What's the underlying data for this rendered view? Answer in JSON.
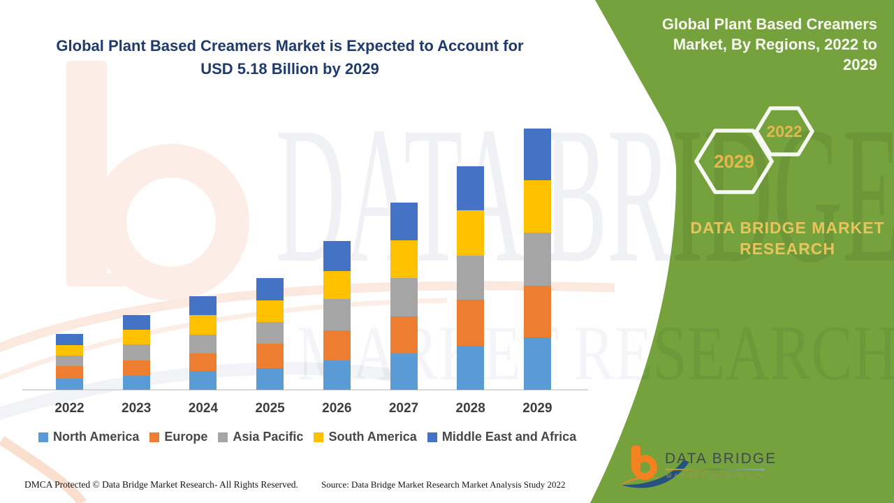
{
  "title": {
    "line1": "Global Plant Based Creamers Market is Expected to Account for",
    "line2": "USD 5.18 Billion by 2029"
  },
  "side_panel": {
    "heading": "Global Plant Based Creamers Market, By Regions, 2022 to 2029",
    "hexagon_large_label": "2029",
    "hexagon_small_label": "2022",
    "brand_line1": "DATA BRIDGE MARKET",
    "brand_line2": "RESEARCH",
    "panel_color": "#76a23e",
    "gold_color": "#e7c55c"
  },
  "watermark": {
    "big_text": "DATA BRIDGE",
    "row2_text": "MARKET RESEARCH"
  },
  "logo": {
    "name": "DATA BRIDGE",
    "sub": "MARKET RESEARCH",
    "b_color": "#f58220",
    "swoosh_color": "#27517f"
  },
  "footer": {
    "dmca": "DMCA Protected © Data Bridge Market Research- All Rights Reserved.",
    "source": "Source: Data Bridge Market Research Market Analysis Study 2022"
  },
  "chart_data": {
    "type": "bar",
    "stacked": true,
    "title": "Global Plant Based Creamers Market, By Regions, 2022 to 2029",
    "unit": "USD Billion",
    "categories": [
      "2022",
      "2023",
      "2024",
      "2025",
      "2026",
      "2027",
      "2028",
      "2029"
    ],
    "series": [
      {
        "name": "North America",
        "color": "#5b9bd5",
        "values": [
          0.22,
          0.28,
          0.37,
          0.43,
          0.58,
          0.72,
          0.87,
          1.04
        ]
      },
      {
        "name": "Europe",
        "color": "#ed7d31",
        "values": [
          0.25,
          0.3,
          0.35,
          0.48,
          0.6,
          0.73,
          0.91,
          1.02
        ]
      },
      {
        "name": "Asia Pacific",
        "color": "#a5a5a5",
        "values": [
          0.21,
          0.32,
          0.37,
          0.43,
          0.62,
          0.76,
          0.87,
          1.05
        ]
      },
      {
        "name": "South America",
        "color": "#ffc000",
        "values": [
          0.21,
          0.29,
          0.39,
          0.43,
          0.55,
          0.75,
          0.9,
          1.04
        ]
      },
      {
        "name": "Middle East and Africa",
        "color": "#4472c4",
        "values": [
          0.22,
          0.29,
          0.37,
          0.44,
          0.6,
          0.75,
          0.87,
          1.03
        ]
      }
    ],
    "totals_estimated": [
      1.11,
      1.48,
      1.85,
      2.21,
      2.95,
      3.71,
      4.42,
      5.18
    ],
    "final_year_total_label": "USD 5.18 Billion by 2029",
    "ylim": [
      0,
      5.5
    ],
    "gridlines": false,
    "y_axis_hidden": true,
    "legend_position": "bottom"
  }
}
